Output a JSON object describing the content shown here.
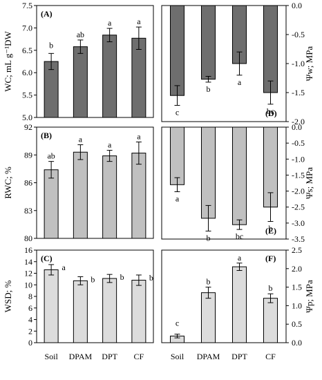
{
  "chart_data": [
    {
      "id": "A",
      "type": "bar",
      "panel_label": "(A)",
      "ylabel": "WC; mL g⁻¹DW",
      "categories": [
        "Soil",
        "DPAM",
        "DPT",
        "CF"
      ],
      "values": [
        6.25,
        6.58,
        6.84,
        6.77
      ],
      "errors": [
        0.18,
        0.15,
        0.15,
        0.25
      ],
      "significance": [
        "b",
        "ab",
        "a",
        "a"
      ],
      "ylim": [
        5.0,
        7.5
      ],
      "yticks": [
        "5.0",
        "5.5",
        "6.0",
        "6.5",
        "7.0",
        "7.5"
      ],
      "bar_color": "#6e6e6e",
      "axis_side": "left",
      "direction": "up"
    },
    {
      "id": "D",
      "type": "bar",
      "panel_label": "(D)",
      "ylabel": "Ψw; MPa",
      "categories": [
        "Soil",
        "DPAM",
        "DPT",
        "CF"
      ],
      "values": [
        -1.55,
        -1.27,
        -1.0,
        -1.5
      ],
      "errors": [
        0.17,
        0.05,
        0.2,
        0.2
      ],
      "significance": [
        "c",
        "b",
        "a",
        "bc"
      ],
      "ylim": [
        -2.0,
        0.0
      ],
      "yticks": [
        "0.0",
        "-0.5",
        "-1.0",
        "-1.5",
        "-2.0"
      ],
      "bar_color": "#6e6e6e",
      "axis_side": "right",
      "direction": "down"
    },
    {
      "id": "B",
      "type": "bar",
      "panel_label": "(B)",
      "ylabel": "RWC; %",
      "categories": [
        "Soil",
        "DPAM",
        "DPT",
        "CF"
      ],
      "values": [
        87.4,
        89.3,
        88.9,
        89.2
      ],
      "errors": [
        0.9,
        0.8,
        0.6,
        1.2
      ],
      "significance": [
        "ab",
        "a",
        "a",
        "a"
      ],
      "ylim": [
        80,
        92
      ],
      "yticks": [
        "80",
        "83",
        "86",
        "89",
        "92"
      ],
      "bar_color": "#c0c0c0",
      "axis_side": "left",
      "direction": "up"
    },
    {
      "id": "E",
      "type": "bar",
      "panel_label": "(E)",
      "ylabel": "Ψs; MPa",
      "categories": [
        "Soil",
        "DPAM",
        "DPT",
        "CF"
      ],
      "values": [
        -1.8,
        -2.85,
        -3.05,
        -2.5
      ],
      "errors": [
        0.22,
        0.4,
        0.15,
        0.45
      ],
      "significance": [
        "a",
        "b",
        "bc",
        "b"
      ],
      "ylim": [
        -3.5,
        0.0
      ],
      "yticks": [
        "0.0",
        "-0.5",
        "-1.0",
        "-1.5",
        "-2.0",
        "-2.5",
        "-3.0",
        "-3.5"
      ],
      "bar_color": "#c0c0c0",
      "axis_side": "right",
      "direction": "down"
    },
    {
      "id": "C",
      "type": "bar",
      "panel_label": "(C)",
      "ylabel": "WSD; %",
      "categories": [
        "Soil",
        "DPAM",
        "DPT",
        "CF"
      ],
      "values": [
        12.6,
        10.7,
        11.1,
        10.8
      ],
      "errors": [
        0.9,
        0.7,
        0.7,
        0.9
      ],
      "significance": [
        "a",
        "b",
        "b",
        "b"
      ],
      "ylim": [
        0,
        16
      ],
      "yticks": [
        "0",
        "2",
        "4",
        "6",
        "8",
        "10",
        "12",
        "14",
        "16"
      ],
      "bar_color": "#dcdcdc",
      "axis_side": "left",
      "direction": "up"
    },
    {
      "id": "F",
      "type": "bar",
      "panel_label": "(F)",
      "ylabel": "Ψp; MPa",
      "categories": [
        "Soil",
        "DPAM",
        "DPT",
        "CF"
      ],
      "values": [
        0.18,
        1.35,
        2.05,
        1.2
      ],
      "errors": [
        0.05,
        0.15,
        0.1,
        0.12
      ],
      "significance": [
        "c",
        "b",
        "a",
        "b"
      ],
      "ylim": [
        0.0,
        2.5
      ],
      "yticks": [
        "0.0",
        "0.5",
        "1.0",
        "1.5",
        "2.0",
        "2.5"
      ],
      "bar_color": "#dcdcdc",
      "axis_side": "right",
      "direction": "up"
    }
  ],
  "x_labels": [
    "Soil",
    "DPAM",
    "DPT",
    "CF"
  ]
}
